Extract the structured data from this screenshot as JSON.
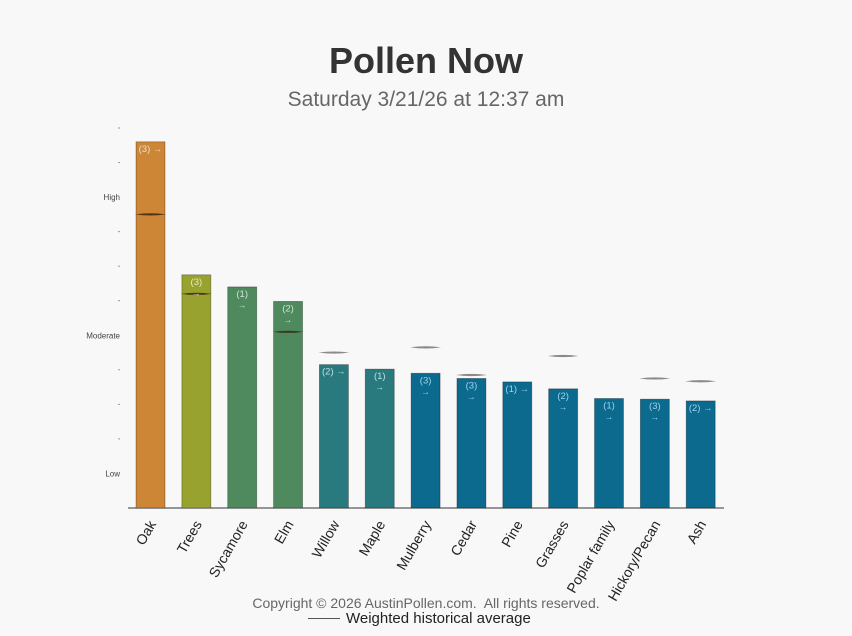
{
  "header": {
    "title": "Pollen Now",
    "subtitle": "Saturday 3/21/26 at 12:37 am"
  },
  "footer": {
    "copyright": "Copyright © 2026 AustinPollen.com.",
    "rights": "All rights reserved."
  },
  "legend": {
    "label": "Weighted historical average"
  },
  "chart_data": {
    "type": "bar",
    "y_scale_labels": [
      {
        "value": 1,
        "label": "Low"
      },
      {
        "value": 5,
        "label": "Moderate"
      },
      {
        "value": 9,
        "label": "High"
      }
    ],
    "ylim": [
      0,
      11
    ],
    "categories": [
      "Oak",
      "Trees",
      "Sycamore",
      "Elm",
      "Willow",
      "Maple",
      "Mulberry",
      "Cedar",
      "Pine",
      "Grasses",
      "Poplar family",
      "Hickory/Pecan",
      "Ash"
    ],
    "values": [
      10.6,
      6.75,
      6.4,
      5.98,
      4.15,
      4.02,
      3.9,
      3.75,
      3.65,
      3.45,
      3.17,
      3.15,
      3.1
    ],
    "historical_avg": [
      8.5,
      6.2,
      null,
      5.1,
      4.5,
      null,
      4.65,
      3.85,
      null,
      4.4,
      null,
      3.75,
      3.67
    ],
    "labels": [
      "(3) →",
      "(3) →",
      "(1) →",
      "(2) →",
      "(2) →",
      "(1) →",
      "(3) →",
      "(3) →",
      "(1) →",
      "(2) →",
      "(1) →",
      "(3) →",
      "(2) →"
    ],
    "colors": [
      "#cd8536",
      "#98a22f",
      "#4f8a5e",
      "#4f8a5e",
      "#297a7e",
      "#297a7e",
      "#0b6a8e",
      "#0b6a8e",
      "#0b6a8e",
      "#0b6a8e",
      "#0b6a8e",
      "#0b6a8e",
      "#0b6a8e"
    ],
    "label_colors": [
      "#e8e0c8",
      "#e6ecc0",
      "#cfe3d5",
      "#cfe3d5",
      "#bfe0e2",
      "#bfe0e2",
      "#9fd4ec",
      "#9fd4ec",
      "#9fd4ec",
      "#9fd4ec",
      "#9fd4ec",
      "#9fd4ec",
      "#9fd4ec"
    ]
  }
}
